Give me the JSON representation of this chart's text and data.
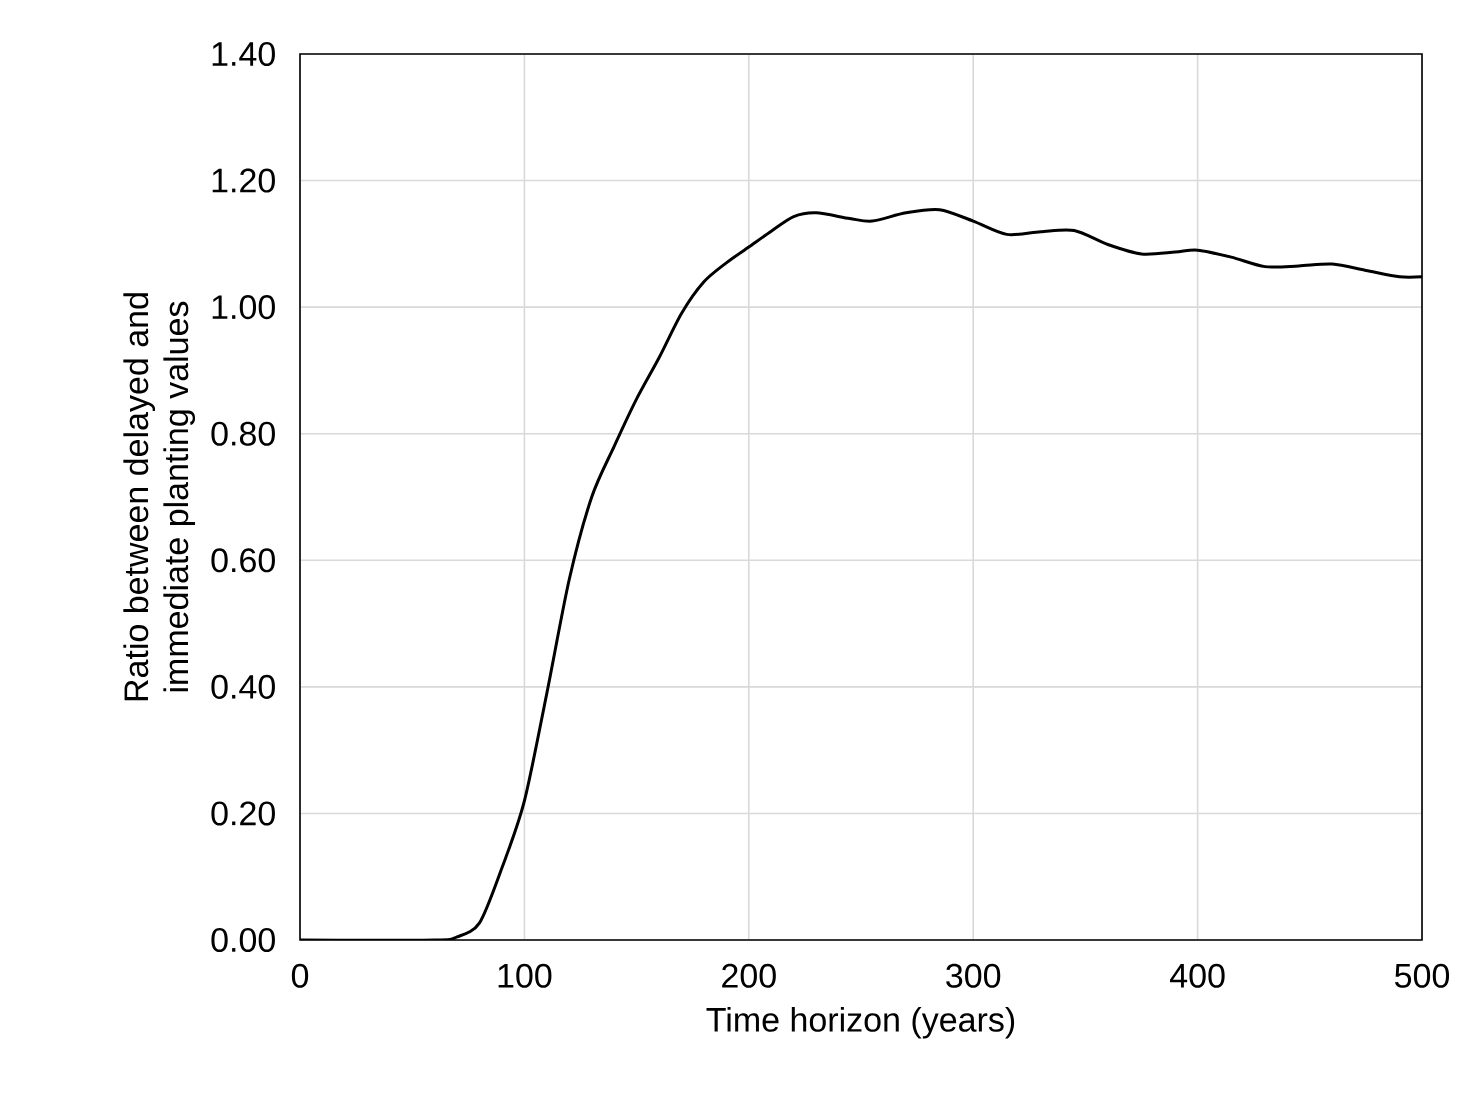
{
  "chart_data": {
    "type": "line",
    "xlabel": "Time horizon (years)",
    "ylabel": "Ratio between delayed and\nimmediate planting values",
    "xlim": [
      0,
      500
    ],
    "xticks": [
      0,
      100,
      200,
      300,
      400,
      500
    ],
    "ylim": [
      0,
      1.4
    ],
    "yticks": [
      {
        "value": 0,
        "label": "0.00"
      },
      {
        "value": 0.2,
        "label": "0.20"
      },
      {
        "value": 0.4,
        "label": "0.40"
      },
      {
        "value": 0.6,
        "label": "0.60"
      },
      {
        "value": 0.8,
        "label": "0.80"
      },
      {
        "value": 1.0,
        "label": "1.00"
      },
      {
        "value": 1.2,
        "label": "1.20"
      },
      {
        "value": 1.4,
        "label": "1.40"
      }
    ],
    "grid": true,
    "marker": "none",
    "line_style": "solid",
    "series": [
      {
        "color": "#000000",
        "x": [
          0,
          60,
          70,
          80,
          90,
          100,
          110,
          120,
          130,
          140,
          150,
          160,
          170,
          180,
          190,
          200,
          210,
          220,
          230,
          245,
          255,
          270,
          285,
          300,
          315,
          330,
          345,
          360,
          375,
          390,
          400,
          415,
          430,
          445,
          460,
          475,
          490,
          500
        ],
        "values": [
          0,
          0,
          0.005,
          0.027,
          0.114,
          0.22,
          0.39,
          0.57,
          0.7,
          0.78,
          0.855,
          0.92,
          0.99,
          1.04,
          1.07,
          1.095,
          1.12,
          1.143,
          1.149,
          1.14,
          1.136,
          1.149,
          1.154,
          1.136,
          1.115,
          1.119,
          1.121,
          1.099,
          1.084,
          1.087,
          1.09,
          1.079,
          1.064,
          1.065,
          1.068,
          1.058,
          1.048,
          1.048
        ]
      }
    ]
  }
}
